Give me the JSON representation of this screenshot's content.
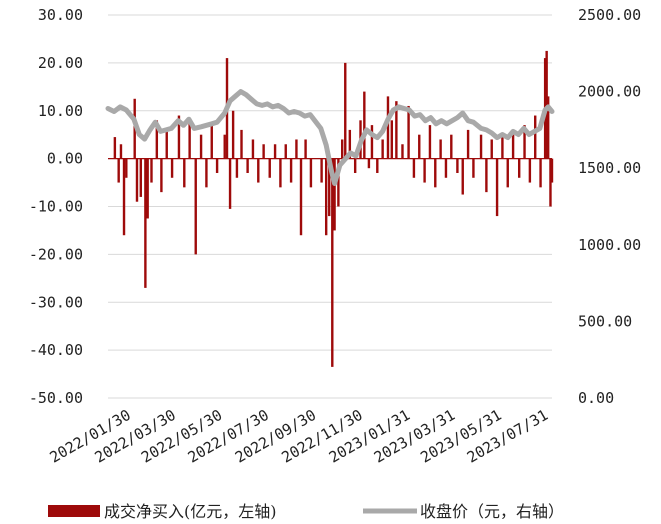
{
  "chart_data": {
    "type": "bar+line",
    "dual_axis": true,
    "y_left": {
      "ticks": [
        "30.00",
        "20.00",
        "10.00",
        "0.00",
        "-10.00",
        "-20.00",
        "-30.00",
        "-40.00",
        "-50.00"
      ],
      "range": [
        -50,
        30
      ]
    },
    "y_right": {
      "ticks": [
        "2500.00",
        "2000.00",
        "1500.00",
        "1000.00",
        "500.00",
        "0.00"
      ],
      "range": [
        0,
        2500
      ]
    },
    "x_ticks": [
      "2022/01/30",
      "2022/03/30",
      "2022/05/30",
      "2022/07/30",
      "2022/09/30",
      "2022/11/30",
      "2023/01/31",
      "2023/03/31",
      "2023/05/31",
      "2023/07/31"
    ],
    "x_tick_dates": [
      "2022-01-30",
      "2022-03-30",
      "2022-05-30",
      "2022-07-30",
      "2022-09-30",
      "2022-11-30",
      "2023-01-31",
      "2023-03-31",
      "2023-05-31",
      "2023-07-31"
    ],
    "x_range": [
      "2022-01-04",
      "2023-08-09"
    ],
    "grid": "horizontal",
    "legend_position": "bottom",
    "series": [
      {
        "name": "成交净买入(亿元，左轴)",
        "type": "bar",
        "axis": "left",
        "color": "#9e0a0a",
        "points": [
          [
            "2022-01-13",
            4.5
          ],
          [
            "2022-01-18",
            -5.0
          ],
          [
            "2022-01-21",
            3.0
          ],
          [
            "2022-01-25",
            -16.0
          ],
          [
            "2022-01-28",
            -4.0
          ],
          [
            "2022-02-08",
            12.5
          ],
          [
            "2022-02-11",
            -9.0
          ],
          [
            "2022-02-16",
            -8.0
          ],
          [
            "2022-02-22",
            -27.0
          ],
          [
            "2022-02-25",
            -12.5
          ],
          [
            "2022-03-02",
            -5.0
          ],
          [
            "2022-03-09",
            8.0
          ],
          [
            "2022-03-15",
            -7.0
          ],
          [
            "2022-03-22",
            6.0
          ],
          [
            "2022-03-29",
            -4.0
          ],
          [
            "2022-04-07",
            9.0
          ],
          [
            "2022-04-14",
            -6.0
          ],
          [
            "2022-04-21",
            8.0
          ],
          [
            "2022-04-29",
            -20.0
          ],
          [
            "2022-05-06",
            5.0
          ],
          [
            "2022-05-13",
            -6.0
          ],
          [
            "2022-05-20",
            7.0
          ],
          [
            "2022-05-27",
            -3.0
          ],
          [
            "2022-06-06",
            5.0
          ],
          [
            "2022-06-09",
            21.0
          ],
          [
            "2022-06-13",
            -10.5
          ],
          [
            "2022-06-17",
            10.0
          ],
          [
            "2022-06-22",
            -4.0
          ],
          [
            "2022-06-28",
            6.0
          ],
          [
            "2022-07-06",
            -3.0
          ],
          [
            "2022-07-13",
            4.0
          ],
          [
            "2022-07-20",
            -5.0
          ],
          [
            "2022-07-27",
            3.0
          ],
          [
            "2022-08-04",
            -4.0
          ],
          [
            "2022-08-11",
            3.0
          ],
          [
            "2022-08-18",
            -6.0
          ],
          [
            "2022-08-25",
            3.0
          ],
          [
            "2022-09-01",
            -5.0
          ],
          [
            "2022-09-08",
            4.0
          ],
          [
            "2022-09-14",
            -16.0
          ],
          [
            "2022-09-20",
            4.0
          ],
          [
            "2022-09-27",
            -6.0
          ],
          [
            "2022-10-11",
            -5.0
          ],
          [
            "2022-10-17",
            -16.0
          ],
          [
            "2022-10-21",
            -12.0
          ],
          [
            "2022-10-25",
            -43.5
          ],
          [
            "2022-10-28",
            -15.0
          ],
          [
            "2022-11-02",
            -10.0
          ],
          [
            "2022-11-07",
            4.0
          ],
          [
            "2022-11-11",
            20.0
          ],
          [
            "2022-11-17",
            6.0
          ],
          [
            "2022-11-24",
            -3.0
          ],
          [
            "2022-12-01",
            8.0
          ],
          [
            "2022-12-06",
            14.0
          ],
          [
            "2022-12-12",
            -2.0
          ],
          [
            "2022-12-16",
            7.0
          ],
          [
            "2022-12-23",
            -3.0
          ],
          [
            "2022-12-30",
            4.0
          ],
          [
            "2023-01-06",
            13.0
          ],
          [
            "2023-01-11",
            8.0
          ],
          [
            "2023-01-17",
            12.0
          ],
          [
            "2023-01-25",
            3.0
          ],
          [
            "2023-02-02",
            11.0
          ],
          [
            "2023-02-09",
            -4.0
          ],
          [
            "2023-02-16",
            5.0
          ],
          [
            "2023-02-23",
            -5.0
          ],
          [
            "2023-03-02",
            7.0
          ],
          [
            "2023-03-09",
            -6.0
          ],
          [
            "2023-03-16",
            4.0
          ],
          [
            "2023-03-23",
            -4.0
          ],
          [
            "2023-03-30",
            5.0
          ],
          [
            "2023-04-07",
            -3.0
          ],
          [
            "2023-04-14",
            -7.5
          ],
          [
            "2023-04-21",
            6.0
          ],
          [
            "2023-04-28",
            -4.0
          ],
          [
            "2023-05-08",
            5.0
          ],
          [
            "2023-05-15",
            -7.0
          ],
          [
            "2023-05-22",
            4.0
          ],
          [
            "2023-05-29",
            -12.0
          ],
          [
            "2023-06-05",
            5.0
          ],
          [
            "2023-06-12",
            -6.0
          ],
          [
            "2023-06-19",
            5.0
          ],
          [
            "2023-06-27",
            -4.0
          ],
          [
            "2023-07-04",
            7.0
          ],
          [
            "2023-07-11",
            -5.0
          ],
          [
            "2023-07-18",
            9.0
          ],
          [
            "2023-07-25",
            -6.0
          ],
          [
            "2023-07-31",
            21.0
          ],
          [
            "2023-08-02",
            22.5
          ],
          [
            "2023-08-04",
            13.0
          ],
          [
            "2023-08-07",
            -10.0
          ],
          [
            "2023-08-09",
            -5.0
          ]
        ]
      },
      {
        "name": "收盘价（元，右轴）",
        "type": "line",
        "axis": "right",
        "color": "#a9a9a9",
        "points": [
          [
            "2022-01-04",
            1890
          ],
          [
            "2022-01-12",
            1870
          ],
          [
            "2022-01-20",
            1900
          ],
          [
            "2022-01-28",
            1880
          ],
          [
            "2022-02-07",
            1820
          ],
          [
            "2022-02-14",
            1720
          ],
          [
            "2022-02-21",
            1690
          ],
          [
            "2022-02-28",
            1750
          ],
          [
            "2022-03-07",
            1800
          ],
          [
            "2022-03-14",
            1740
          ],
          [
            "2022-03-21",
            1750
          ],
          [
            "2022-03-28",
            1760
          ],
          [
            "2022-04-06",
            1810
          ],
          [
            "2022-04-13",
            1780
          ],
          [
            "2022-04-20",
            1820
          ],
          [
            "2022-04-27",
            1760
          ],
          [
            "2022-05-06",
            1770
          ],
          [
            "2022-05-13",
            1780
          ],
          [
            "2022-05-20",
            1790
          ],
          [
            "2022-05-27",
            1800
          ],
          [
            "2022-06-06",
            1860
          ],
          [
            "2022-06-13",
            1940
          ],
          [
            "2022-06-20",
            1970
          ],
          [
            "2022-06-27",
            2000
          ],
          [
            "2022-07-04",
            1980
          ],
          [
            "2022-07-11",
            1950
          ],
          [
            "2022-07-18",
            1920
          ],
          [
            "2022-07-25",
            1910
          ],
          [
            "2022-08-01",
            1920
          ],
          [
            "2022-08-08",
            1900
          ],
          [
            "2022-08-15",
            1910
          ],
          [
            "2022-08-22",
            1890
          ],
          [
            "2022-08-29",
            1860
          ],
          [
            "2022-09-05",
            1870
          ],
          [
            "2022-09-12",
            1860
          ],
          [
            "2022-09-19",
            1840
          ],
          [
            "2022-09-26",
            1850
          ],
          [
            "2022-10-10",
            1760
          ],
          [
            "2022-10-17",
            1650
          ],
          [
            "2022-10-24",
            1480
          ],
          [
            "2022-10-28",
            1400
          ],
          [
            "2022-11-04",
            1520
          ],
          [
            "2022-11-11",
            1560
          ],
          [
            "2022-11-18",
            1600
          ],
          [
            "2022-11-25",
            1580
          ],
          [
            "2022-12-02",
            1680
          ],
          [
            "2022-12-09",
            1750
          ],
          [
            "2022-12-16",
            1720
          ],
          [
            "2022-12-23",
            1700
          ],
          [
            "2022-12-30",
            1740
          ],
          [
            "2023-01-06",
            1820
          ],
          [
            "2023-01-13",
            1880
          ],
          [
            "2023-01-20",
            1900
          ],
          [
            "2023-02-03",
            1880
          ],
          [
            "2023-02-10",
            1840
          ],
          [
            "2023-02-17",
            1850
          ],
          [
            "2023-02-24",
            1810
          ],
          [
            "2023-03-03",
            1830
          ],
          [
            "2023-03-10",
            1790
          ],
          [
            "2023-03-17",
            1810
          ],
          [
            "2023-03-24",
            1790
          ],
          [
            "2023-03-31",
            1810
          ],
          [
            "2023-04-07",
            1830
          ],
          [
            "2023-04-14",
            1860
          ],
          [
            "2023-04-21",
            1810
          ],
          [
            "2023-04-28",
            1800
          ],
          [
            "2023-05-08",
            1760
          ],
          [
            "2023-05-15",
            1750
          ],
          [
            "2023-05-22",
            1730
          ],
          [
            "2023-05-29",
            1700
          ],
          [
            "2023-06-05",
            1720
          ],
          [
            "2023-06-12",
            1700
          ],
          [
            "2023-06-19",
            1740
          ],
          [
            "2023-06-26",
            1720
          ],
          [
            "2023-07-03",
            1760
          ],
          [
            "2023-07-10",
            1720
          ],
          [
            "2023-07-17",
            1740
          ],
          [
            "2023-07-24",
            1760
          ],
          [
            "2023-07-31",
            1880
          ],
          [
            "2023-08-04",
            1900
          ],
          [
            "2023-08-09",
            1870
          ]
        ]
      }
    ]
  }
}
